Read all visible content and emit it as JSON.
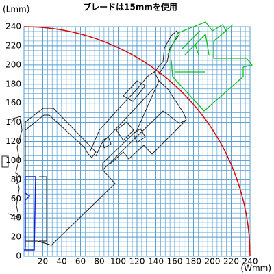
{
  "chart_data": {
    "type": "arc",
    "title": "ブレードは15mmを使用",
    "title_color": "#e00000",
    "xlabel": "(Wmm)",
    "ylabel": "(Lmm)",
    "xlim": [
      0,
      240
    ],
    "ylim": [
      0,
      240
    ],
    "xticks": [
      20,
      40,
      60,
      80,
      100,
      120,
      140,
      160,
      180,
      200,
      220,
      240
    ],
    "yticks": [
      0,
      20,
      40,
      60,
      80,
      100,
      120,
      140,
      160,
      180,
      200,
      220,
      240
    ],
    "grid": true,
    "minor_step": 5,
    "grid_color": "#5a9fd0",
    "radius": 240,
    "color": "#e00000"
  }
}
